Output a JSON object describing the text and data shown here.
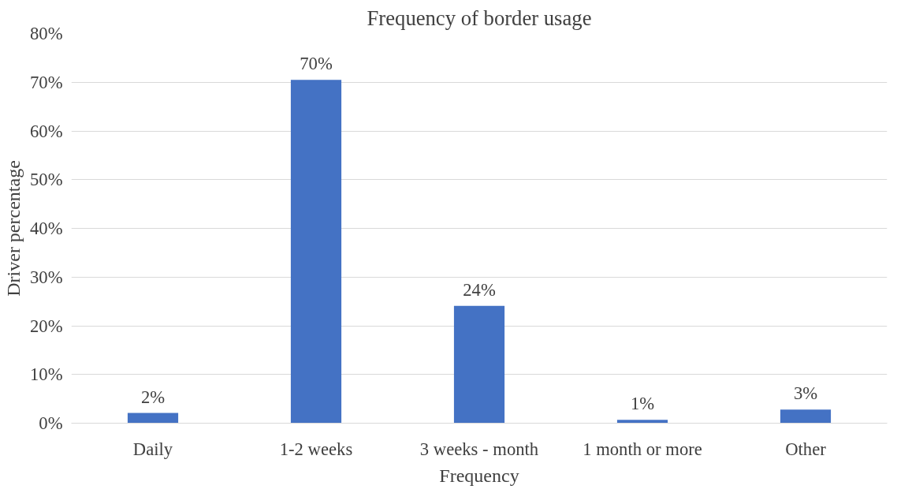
{
  "chart_data": {
    "type": "bar",
    "title": "Frequency of border usage",
    "xlabel": "Frequency",
    "ylabel": "Driver percentage",
    "categories": [
      "Daily",
      "1-2 weeks",
      "3 weeks - month",
      "1 month or more",
      "Other"
    ],
    "values": [
      2.1,
      70.5,
      24.1,
      0.7,
      2.8
    ],
    "value_labels": [
      "2%",
      "70%",
      "24%",
      "1%",
      "3%"
    ],
    "color": "#4472c4",
    "ylim": [
      0,
      80
    ],
    "yticks": [
      {
        "value": 0,
        "label": "0%"
      },
      {
        "value": 10,
        "label": "10%"
      },
      {
        "value": 20,
        "label": "20%"
      },
      {
        "value": 30,
        "label": "30%"
      },
      {
        "value": 40,
        "label": "40%"
      },
      {
        "value": 50,
        "label": "50%"
      },
      {
        "value": 60,
        "label": "60%"
      },
      {
        "value": 70,
        "label": "70%"
      },
      {
        "value": 80,
        "label": "80%"
      }
    ],
    "grid": "y"
  }
}
